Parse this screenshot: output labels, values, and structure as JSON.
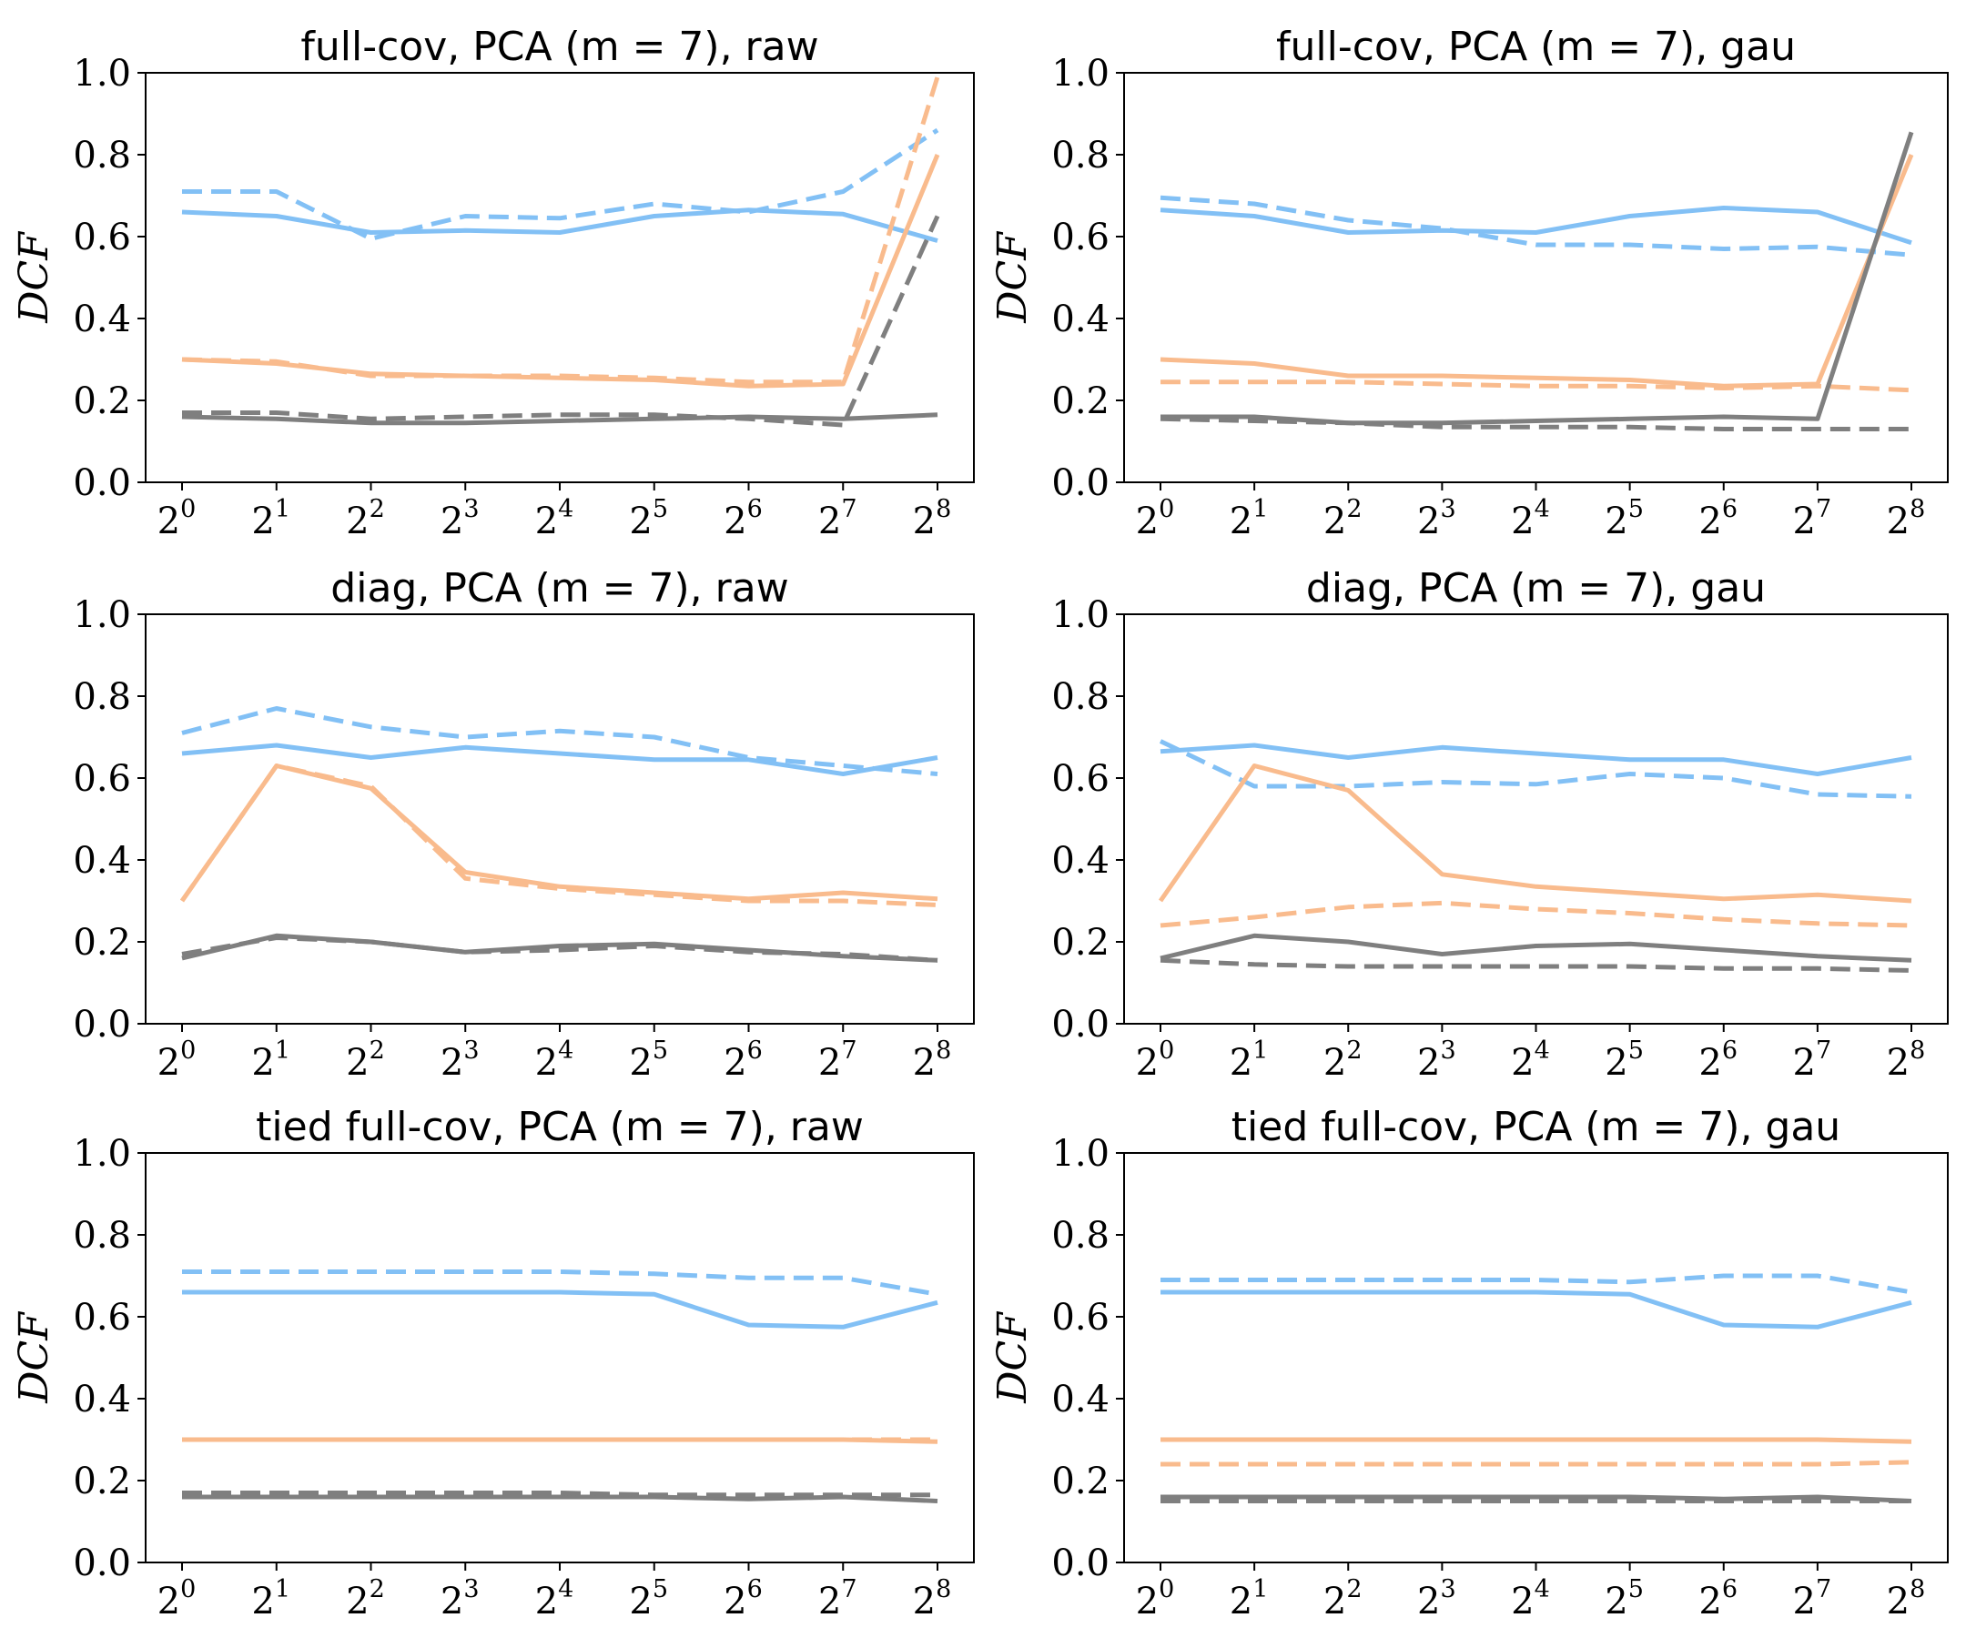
{
  "figure": {
    "colors": {
      "blue": "#82c0f5",
      "orange": "#f9bb8d",
      "gray": "#7f7f7f",
      "axis": "#000000"
    },
    "line_styles": {
      "solid": "solid",
      "dashed": "dashed"
    }
  },
  "chart_data": [
    {
      "type": "line",
      "title": "full-cov, PCA (m = 7), raw",
      "ylabel": "DCF",
      "ylim": [
        0,
        1.0
      ],
      "yticks": [
        "0.0",
        "0.2",
        "0.4",
        "0.6",
        "0.8",
        "1.0"
      ],
      "x_tick_base": "2",
      "x_tick_exponents": [
        "0",
        "1",
        "2",
        "3",
        "4",
        "5",
        "6",
        "7",
        "8"
      ],
      "x": [
        1,
        2,
        4,
        8,
        16,
        32,
        64,
        128,
        256
      ],
      "series": [
        {
          "color": "blue",
          "style": "solid",
          "values": [
            0.66,
            0.65,
            0.61,
            0.615,
            0.61,
            0.65,
            0.665,
            0.655,
            0.59
          ]
        },
        {
          "color": "blue",
          "style": "dashed",
          "values": [
            0.71,
            0.71,
            0.595,
            0.65,
            0.645,
            0.68,
            0.66,
            0.71,
            0.86
          ]
        },
        {
          "color": "orange",
          "style": "solid",
          "values": [
            0.3,
            0.29,
            0.265,
            0.26,
            0.255,
            0.25,
            0.235,
            0.24,
            0.8
          ]
        },
        {
          "color": "orange",
          "style": "dashed",
          "values": [
            0.3,
            0.295,
            0.26,
            0.26,
            0.26,
            0.255,
            0.245,
            0.245,
            0.99
          ]
        },
        {
          "color": "gray",
          "style": "solid",
          "values": [
            0.16,
            0.155,
            0.145,
            0.145,
            0.15,
            0.155,
            0.16,
            0.155,
            0.165
          ]
        },
        {
          "color": "gray",
          "style": "dashed",
          "values": [
            0.17,
            0.17,
            0.155,
            0.16,
            0.165,
            0.165,
            0.155,
            0.14,
            0.65
          ]
        }
      ]
    },
    {
      "type": "line",
      "title": "full-cov, PCA (m = 7), gau",
      "ylabel": "DCF",
      "ylim": [
        0,
        1.0
      ],
      "yticks": [
        "0.0",
        "0.2",
        "0.4",
        "0.6",
        "0.8",
        "1.0"
      ],
      "x_tick_base": "2",
      "x_tick_exponents": [
        "0",
        "1",
        "2",
        "3",
        "4",
        "5",
        "6",
        "7",
        "8"
      ],
      "x": [
        1,
        2,
        4,
        8,
        16,
        32,
        64,
        128,
        256
      ],
      "series": [
        {
          "color": "blue",
          "style": "solid",
          "values": [
            0.665,
            0.65,
            0.61,
            0.615,
            0.61,
            0.65,
            0.67,
            0.66,
            0.585
          ]
        },
        {
          "color": "blue",
          "style": "dashed",
          "values": [
            0.695,
            0.68,
            0.64,
            0.62,
            0.58,
            0.58,
            0.57,
            0.575,
            0.555
          ]
        },
        {
          "color": "orange",
          "style": "solid",
          "values": [
            0.3,
            0.29,
            0.26,
            0.26,
            0.255,
            0.25,
            0.235,
            0.24,
            0.8
          ]
        },
        {
          "color": "orange",
          "style": "dashed",
          "values": [
            0.245,
            0.245,
            0.245,
            0.24,
            0.235,
            0.235,
            0.23,
            0.235,
            0.225
          ]
        },
        {
          "color": "gray",
          "style": "solid",
          "values": [
            0.16,
            0.16,
            0.145,
            0.145,
            0.15,
            0.155,
            0.16,
            0.155,
            0.855
          ]
        },
        {
          "color": "gray",
          "style": "dashed",
          "values": [
            0.155,
            0.15,
            0.145,
            0.135,
            0.135,
            0.135,
            0.13,
            0.13,
            0.13
          ]
        }
      ]
    },
    {
      "type": "line",
      "title": "diag, PCA (m = 7), raw",
      "ylabel": "",
      "ylim": [
        0,
        1.0
      ],
      "yticks": [
        "0.0",
        "0.2",
        "0.4",
        "0.6",
        "0.8",
        "1.0"
      ],
      "x_tick_base": "2",
      "x_tick_exponents": [
        "0",
        "1",
        "2",
        "3",
        "4",
        "5",
        "6",
        "7",
        "8"
      ],
      "x": [
        1,
        2,
        4,
        8,
        16,
        32,
        64,
        128,
        256
      ],
      "series": [
        {
          "color": "blue",
          "style": "solid",
          "values": [
            0.66,
            0.68,
            0.65,
            0.675,
            0.66,
            0.645,
            0.645,
            0.61,
            0.65
          ]
        },
        {
          "color": "blue",
          "style": "dashed",
          "values": [
            0.71,
            0.77,
            0.725,
            0.7,
            0.715,
            0.7,
            0.65,
            0.63,
            0.61
          ]
        },
        {
          "color": "orange",
          "style": "solid",
          "values": [
            0.3,
            0.63,
            0.575,
            0.37,
            0.335,
            0.32,
            0.305,
            0.32,
            0.305
          ]
        },
        {
          "color": "orange",
          "style": "dashed",
          "values": [
            0.3,
            0.63,
            0.58,
            0.355,
            0.33,
            0.315,
            0.3,
            0.3,
            0.29
          ]
        },
        {
          "color": "gray",
          "style": "solid",
          "values": [
            0.16,
            0.215,
            0.2,
            0.175,
            0.19,
            0.195,
            0.18,
            0.165,
            0.155
          ]
        },
        {
          "color": "gray",
          "style": "dashed",
          "values": [
            0.17,
            0.21,
            0.2,
            0.175,
            0.18,
            0.19,
            0.175,
            0.17,
            0.155
          ]
        }
      ]
    },
    {
      "type": "line",
      "title": "diag, PCA (m = 7), gau",
      "ylabel": "",
      "ylim": [
        0,
        1.0
      ],
      "yticks": [
        "0.0",
        "0.2",
        "0.4",
        "0.6",
        "0.8",
        "1.0"
      ],
      "x_tick_base": "2",
      "x_tick_exponents": [
        "0",
        "1",
        "2",
        "3",
        "4",
        "5",
        "6",
        "7",
        "8"
      ],
      "x": [
        1,
        2,
        4,
        8,
        16,
        32,
        64,
        128,
        256
      ],
      "series": [
        {
          "color": "blue",
          "style": "solid",
          "values": [
            0.665,
            0.68,
            0.65,
            0.675,
            0.66,
            0.645,
            0.645,
            0.61,
            0.65
          ]
        },
        {
          "color": "blue",
          "style": "dashed",
          "values": [
            0.69,
            0.58,
            0.58,
            0.59,
            0.585,
            0.61,
            0.6,
            0.56,
            0.555
          ]
        },
        {
          "color": "orange",
          "style": "solid",
          "values": [
            0.3,
            0.63,
            0.57,
            0.365,
            0.335,
            0.32,
            0.305,
            0.315,
            0.3
          ]
        },
        {
          "color": "orange",
          "style": "dashed",
          "values": [
            0.24,
            0.26,
            0.285,
            0.295,
            0.28,
            0.27,
            0.255,
            0.245,
            0.24
          ]
        },
        {
          "color": "gray",
          "style": "solid",
          "values": [
            0.16,
            0.215,
            0.2,
            0.17,
            0.19,
            0.195,
            0.18,
            0.165,
            0.155
          ]
        },
        {
          "color": "gray",
          "style": "dashed",
          "values": [
            0.155,
            0.145,
            0.14,
            0.14,
            0.14,
            0.14,
            0.135,
            0.135,
            0.13
          ]
        }
      ]
    },
    {
      "type": "line",
      "title": "tied full-cov, PCA (m = 7), raw",
      "ylabel": "DCF",
      "ylim": [
        0,
        1.0
      ],
      "yticks": [
        "0.0",
        "0.2",
        "0.4",
        "0.6",
        "0.8",
        "1.0"
      ],
      "x_tick_base": "2",
      "x_tick_exponents": [
        "0",
        "1",
        "2",
        "3",
        "4",
        "5",
        "6",
        "7",
        "8"
      ],
      "x": [
        1,
        2,
        4,
        8,
        16,
        32,
        64,
        128,
        256
      ],
      "series": [
        {
          "color": "blue",
          "style": "solid",
          "values": [
            0.66,
            0.66,
            0.66,
            0.66,
            0.66,
            0.655,
            0.58,
            0.575,
            0.635
          ]
        },
        {
          "color": "blue",
          "style": "dashed",
          "values": [
            0.71,
            0.71,
            0.71,
            0.71,
            0.71,
            0.705,
            0.695,
            0.695,
            0.655
          ]
        },
        {
          "color": "orange",
          "style": "solid",
          "values": [
            0.3,
            0.3,
            0.3,
            0.3,
            0.3,
            0.3,
            0.3,
            0.3,
            0.295
          ]
        },
        {
          "color": "orange",
          "style": "dashed",
          "values": [
            0.3,
            0.3,
            0.3,
            0.3,
            0.3,
            0.3,
            0.3,
            0.3,
            0.3
          ]
        },
        {
          "color": "gray",
          "style": "solid",
          "values": [
            0.16,
            0.16,
            0.16,
            0.16,
            0.16,
            0.16,
            0.155,
            0.16,
            0.15
          ]
        },
        {
          "color": "gray",
          "style": "dashed",
          "values": [
            0.17,
            0.17,
            0.17,
            0.17,
            0.17,
            0.165,
            0.165,
            0.165,
            0.165
          ]
        }
      ]
    },
    {
      "type": "line",
      "title": "tied full-cov, PCA (m = 7), gau",
      "ylabel": "DCF",
      "ylim": [
        0,
        1.0
      ],
      "yticks": [
        "0.0",
        "0.2",
        "0.4",
        "0.6",
        "0.8",
        "1.0"
      ],
      "x_tick_base": "2",
      "x_tick_exponents": [
        "0",
        "1",
        "2",
        "3",
        "4",
        "5",
        "6",
        "7",
        "8"
      ],
      "x": [
        1,
        2,
        4,
        8,
        16,
        32,
        64,
        128,
        256
      ],
      "series": [
        {
          "color": "blue",
          "style": "solid",
          "values": [
            0.66,
            0.66,
            0.66,
            0.66,
            0.66,
            0.655,
            0.58,
            0.575,
            0.635
          ]
        },
        {
          "color": "blue",
          "style": "dashed",
          "values": [
            0.69,
            0.69,
            0.69,
            0.69,
            0.69,
            0.685,
            0.7,
            0.7,
            0.66
          ]
        },
        {
          "color": "orange",
          "style": "solid",
          "values": [
            0.3,
            0.3,
            0.3,
            0.3,
            0.3,
            0.3,
            0.3,
            0.3,
            0.295
          ]
        },
        {
          "color": "orange",
          "style": "dashed",
          "values": [
            0.24,
            0.24,
            0.24,
            0.24,
            0.24,
            0.24,
            0.24,
            0.24,
            0.245
          ]
        },
        {
          "color": "gray",
          "style": "solid",
          "values": [
            0.16,
            0.16,
            0.16,
            0.16,
            0.16,
            0.16,
            0.155,
            0.16,
            0.15
          ]
        },
        {
          "color": "gray",
          "style": "dashed",
          "values": [
            0.15,
            0.15,
            0.15,
            0.15,
            0.15,
            0.15,
            0.15,
            0.15,
            0.15
          ]
        }
      ]
    }
  ]
}
